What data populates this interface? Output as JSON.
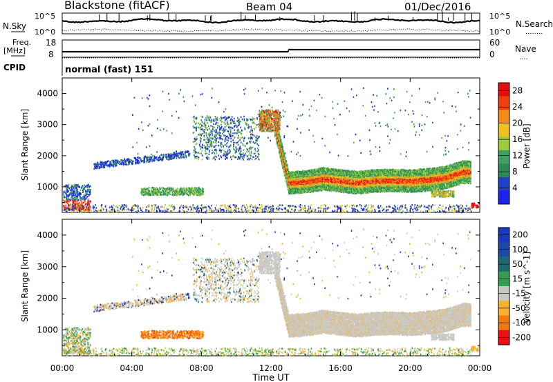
{
  "header": {
    "title": "Blackstone (fitACF)",
    "beam": "Beam 04",
    "date": "01/Dec/2016",
    "cpid_label": "CPID",
    "cpid_value": "normal (fast) 151"
  },
  "noise_panel": {
    "left_label": "N.Sky",
    "right_label": "N.Search",
    "ticks": [
      "10^5",
      "10^0"
    ]
  },
  "freq_panel": {
    "left_label_line1": "Freq.",
    "left_label_line2": "[MHz]",
    "right_label": "Nave",
    "left_ticks": [
      "18",
      "8"
    ],
    "right_ticks": [
      "60",
      "0"
    ]
  },
  "colors": {
    "power": [
      "#1e22ee",
      "#2040c8",
      "#2c8a55",
      "#3fa060",
      "#9ccc3c",
      "#f0c020",
      "#f58a1a",
      "#f04010",
      "#e01010"
    ],
    "velocity": [
      "#1838c0",
      "#1f6a70",
      "#30a050",
      "#c8c8c0",
      "#f8b030",
      "#f47a10",
      "#ee1010"
    ],
    "gray": "#c8c8c4"
  },
  "chart_data": [
    {
      "type": "heatmap",
      "ylabel": "Slant Range [km]",
      "yticks": [
        "1000",
        "2000",
        "3000",
        "4000"
      ],
      "colorbar": {
        "label": "Power [dB]",
        "ticks": [
          "4",
          "8",
          "12",
          "16",
          "20",
          "24",
          "28"
        ],
        "range": [
          0,
          30
        ]
      },
      "y_range_km": [
        180,
        4500
      ],
      "x_range_hours": [
        0,
        24
      ],
      "main_layer": {
        "times_hours": [
          13.0,
          14.0,
          15.0,
          16.0,
          17.0,
          18.0,
          19.0,
          20.0,
          21.0,
          22.0,
          23.0
        ],
        "center_range_km": [
          1150,
          1190,
          1280,
          1220,
          1160,
          1220,
          1230,
          1210,
          1250,
          1320,
          1500
        ]
      }
    },
    {
      "type": "heatmap",
      "ylabel": "Slant Range [km]",
      "yticks": [
        "1000",
        "2000",
        "3000",
        "4000"
      ],
      "colorbar": {
        "label": "Velocity [m s^-1]",
        "ticks": [
          "200",
          "100",
          "50",
          "15",
          "-15",
          "-50",
          "-100",
          "-200"
        ],
        "range": [
          -200,
          200
        ]
      },
      "y_range_km": [
        180,
        4500
      ],
      "x_range_hours": [
        0,
        24
      ]
    }
  ],
  "x_axis": {
    "ticks": [
      "00:00",
      "04:00",
      "08:00",
      "12:00",
      "16:00",
      "20:00",
      "00:00"
    ],
    "label": "Time UT"
  }
}
